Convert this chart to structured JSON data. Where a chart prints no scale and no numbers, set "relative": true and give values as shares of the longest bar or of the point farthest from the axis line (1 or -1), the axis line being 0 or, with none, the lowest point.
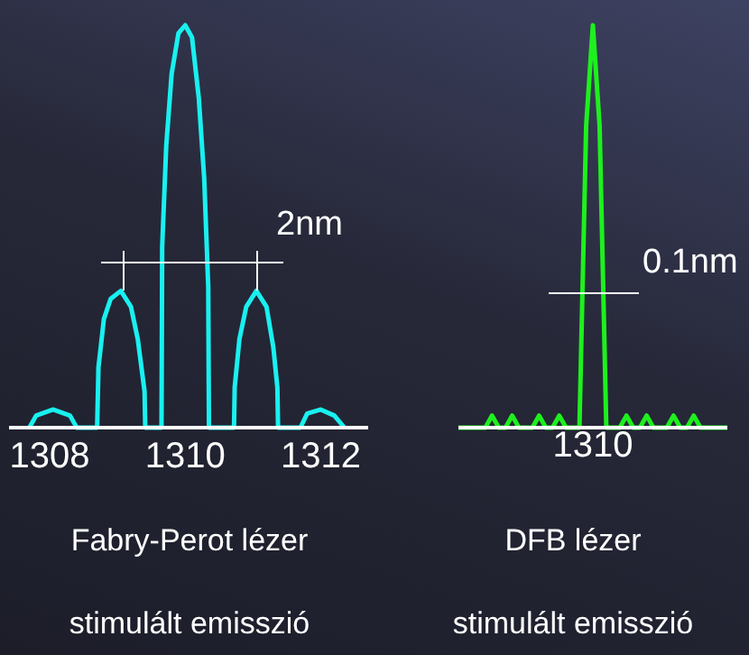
{
  "chart_data": [
    {
      "type": "line",
      "relative": true,
      "xlabel": "Fabry-Perot lézer",
      "annotations": [
        "2nm",
        "stimulált emisszió"
      ],
      "xlim": [
        1307.4,
        1312.7
      ],
      "xticks": [
        {
          "value": 1308,
          "label": "1308"
        },
        {
          "value": 1310,
          "label": "1310"
        },
        {
          "value": 1312,
          "label": "1312"
        }
      ],
      "legend": false,
      "marker": "none",
      "line_style": "solid",
      "series": [
        {
          "color": "#19f0f0",
          "x": [
            1307.7,
            1307.8,
            1308.05,
            1308.3,
            1308.4,
            1308.7,
            1308.72,
            1308.8,
            1308.9,
            1309.05,
            1309.2,
            1309.3,
            1309.4,
            1309.41,
            1309.65,
            1309.66,
            1309.72,
            1309.8,
            1309.9,
            1310.0,
            1310.1,
            1310.2,
            1310.28,
            1310.34,
            1310.35,
            1310.72,
            1310.73,
            1310.8,
            1310.9,
            1311.05,
            1311.2,
            1311.3,
            1311.36,
            1311.37,
            1311.7,
            1311.8,
            1312.0,
            1312.2,
            1312.35
          ],
          "values": [
            0,
            0.03,
            0.045,
            0.03,
            0,
            0,
            0.15,
            0.27,
            0.32,
            0.34,
            0.3,
            0.22,
            0.09,
            0,
            0,
            0.45,
            0.7,
            0.88,
            0.98,
            1,
            0.97,
            0.82,
            0.62,
            0.35,
            0,
            0,
            0.1,
            0.22,
            0.3,
            0.34,
            0.3,
            0.2,
            0.1,
            0,
            0,
            0.035,
            0.045,
            0.03,
            0
          ]
        }
      ]
    },
    {
      "type": "line",
      "relative": true,
      "xlabel": "DFB lézer",
      "annotations": [
        "0.1nm",
        "stimulált emisszió",
        "1310"
      ],
      "legend": false,
      "marker": "none",
      "line_style": "solid",
      "categories": [
        null,
        null,
        null,
        null,
        null,
        null,
        null,
        null,
        null,
        null,
        null,
        null,
        null,
        null,
        null,
        null,
        null,
        null,
        null,
        null,
        null,
        null,
        null,
        null,
        null,
        null,
        null,
        null,
        null,
        null,
        null,
        null,
        null,
        null,
        null,
        null,
        null,
        null,
        null,
        null,
        null
      ],
      "series": [
        {
          "color": "#1ef01e",
          "values": [
            0,
            0,
            0,
            0,
            0,
            0.03,
            0,
            0,
            0.03,
            0,
            0,
            0,
            0.03,
            0,
            0,
            0.03,
            0,
            0,
            0,
            0.75,
            1,
            0.75,
            0,
            0,
            0,
            0.03,
            0,
            0,
            0.03,
            0,
            0,
            0,
            0.03,
            0,
            0,
            0.03,
            0,
            0,
            0,
            0,
            0
          ]
        }
      ]
    }
  ]
}
